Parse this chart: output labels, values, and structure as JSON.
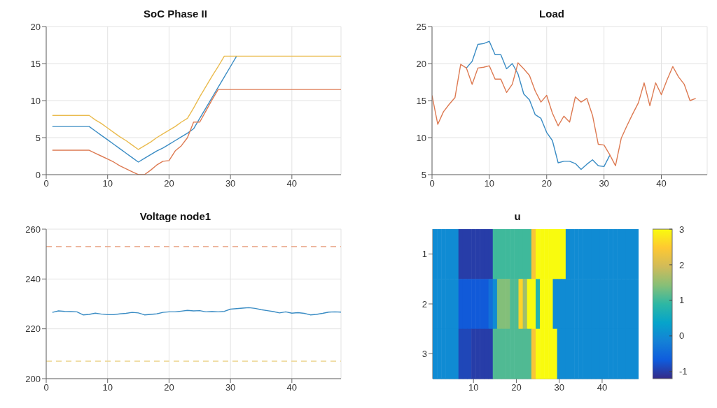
{
  "chart_data": [
    {
      "type": "line",
      "title": "SoC Phase II",
      "x": [
        1,
        2,
        3,
        4,
        5,
        6,
        7,
        8,
        9,
        10,
        11,
        12,
        13,
        14,
        15,
        16,
        17,
        18,
        19,
        20,
        21,
        22,
        23,
        24,
        25,
        26,
        27,
        28,
        29,
        30,
        31,
        32,
        33,
        34,
        35,
        36,
        37,
        38,
        39,
        40,
        41,
        42,
        43,
        44,
        45,
        46,
        47,
        48
      ],
      "xlim": [
        0,
        48
      ],
      "xticks": [
        0,
        10,
        20,
        30,
        40
      ],
      "ylim": [
        0,
        20
      ],
      "yticks": [
        0,
        5,
        10,
        15,
        20
      ],
      "grid": true,
      "series": [
        {
          "color": "#3a8cc4",
          "values": [
            6.5,
            6.5,
            6.5,
            6.5,
            6.5,
            6.5,
            6.5,
            5.9,
            5.3,
            4.7,
            4.1,
            3.5,
            2.9,
            2.3,
            1.7,
            2.2,
            2.7,
            3.2,
            3.6,
            4.1,
            4.6,
            5.1,
            5.6,
            6.2,
            7.6,
            9.0,
            10.4,
            11.8,
            13.2,
            14.6,
            16.0,
            null,
            null,
            null,
            null,
            null,
            null,
            null,
            null,
            null,
            null,
            null,
            null,
            null,
            null,
            null,
            null,
            null
          ]
        },
        {
          "color": "#dd7a52",
          "values": [
            3.3,
            3.3,
            3.3,
            3.3,
            3.3,
            3.3,
            3.3,
            2.9,
            2.5,
            2.1,
            1.7,
            1.2,
            0.8,
            0.4,
            0,
            0,
            0.6,
            1.3,
            1.8,
            1.9,
            3.2,
            3.9,
            5.0,
            7.1,
            7.1,
            8.6,
            10.1,
            11.5,
            11.5,
            11.5,
            11.5,
            11.5,
            11.5,
            11.5,
            11.5,
            11.5,
            11.5,
            11.5,
            11.5,
            11.5,
            11.5,
            11.5,
            11.5,
            11.5,
            11.5,
            11.5,
            11.5,
            11.5
          ]
        },
        {
          "color": "#eabb4e",
          "values": [
            8.0,
            8.0,
            8.0,
            8.0,
            8.0,
            8.0,
            8.0,
            7.4,
            6.9,
            6.3,
            5.7,
            5.1,
            4.6,
            4.0,
            3.4,
            3.9,
            4.4,
            5.0,
            5.5,
            6.0,
            6.5,
            7.1,
            7.6,
            9.0,
            10.5,
            11.9,
            13.3,
            14.6,
            16.0,
            16,
            16,
            16,
            16,
            16,
            16,
            16,
            16,
            16,
            16,
            16,
            16,
            16,
            16,
            16,
            16,
            16,
            16,
            16
          ]
        }
      ]
    },
    {
      "type": "line",
      "title": "Load",
      "x": [
        0,
        1,
        2,
        3,
        4,
        5,
        6,
        7,
        8,
        9,
        10,
        11,
        12,
        13,
        14,
        15,
        16,
        17,
        18,
        19,
        20,
        21,
        22,
        23,
        24,
        25,
        26,
        27,
        28,
        29,
        30,
        31,
        32,
        33,
        34,
        35,
        36,
        37,
        38,
        39,
        40,
        41,
        42,
        43,
        44,
        45,
        46
      ],
      "xlim": [
        0,
        48
      ],
      "xticks": [
        0,
        10,
        20,
        30,
        40
      ],
      "ylim": [
        5,
        25
      ],
      "yticks": [
        5,
        10,
        15,
        20,
        25
      ],
      "grid": true,
      "series": [
        {
          "color": "#3a8cc4",
          "values": [
            null,
            null,
            null,
            null,
            null,
            null,
            19.4,
            20.3,
            22.6,
            22.7,
            23.0,
            21.2,
            21.2,
            19.3,
            20.0,
            18.6,
            15.9,
            15.1,
            13.1,
            12.6,
            10.7,
            9.6,
            6.6,
            6.8,
            6.8,
            6.5,
            5.7,
            6.4,
            7.0,
            6.2,
            6.1,
            7.6,
            null,
            null,
            null,
            null,
            null,
            null,
            null,
            null,
            null,
            null,
            null,
            null,
            null,
            null,
            null
          ]
        },
        {
          "color": "#dd7a52",
          "values": [
            15.7,
            11.8,
            13.5,
            14.5,
            15.4,
            19.9,
            19.4,
            17.2,
            19.4,
            19.5,
            19.7,
            17.9,
            17.9,
            16.1,
            17.2,
            20.1,
            19.3,
            18.4,
            16.3,
            14.8,
            15.7,
            13.3,
            11.6,
            12.9,
            12.1,
            15.5,
            14.8,
            15.3,
            13.0,
            9.1,
            9.0,
            7.7,
            6.2,
            9.9,
            11.6,
            13.2,
            14.7,
            17.4,
            14.3,
            17.4,
            15.8,
            17.8,
            19.6,
            18.2,
            17.2,
            15.0,
            15.3
          ]
        }
      ]
    },
    {
      "type": "line",
      "title": "Voltage node1",
      "x": [
        1,
        2,
        3,
        4,
        5,
        6,
        7,
        8,
        9,
        10,
        11,
        12,
        13,
        14,
        15,
        16,
        17,
        18,
        19,
        20,
        21,
        22,
        23,
        24,
        25,
        26,
        27,
        28,
        29,
        30,
        31,
        32,
        33,
        34,
        35,
        36,
        37,
        38,
        39,
        40,
        41,
        42,
        43,
        44,
        45,
        46,
        47,
        48
      ],
      "xlim": [
        0,
        48
      ],
      "xticks": [
        0,
        10,
        20,
        30,
        40
      ],
      "ylim": [
        200,
        260
      ],
      "yticks": [
        200,
        220,
        240,
        260
      ],
      "grid": true,
      "series": [
        {
          "color": "#3a8cc4",
          "values": [
            226.6,
            227.2,
            227.0,
            226.9,
            226.8,
            225.6,
            225.8,
            226.3,
            225.9,
            225.7,
            225.7,
            226.0,
            226.2,
            226.6,
            226.4,
            225.6,
            225.8,
            226.0,
            226.6,
            226.8,
            226.8,
            227.1,
            227.4,
            227.2,
            227.3,
            226.8,
            226.9,
            226.8,
            227.0,
            227.9,
            228.1,
            228.3,
            228.5,
            228.2,
            227.7,
            227.3,
            226.9,
            226.4,
            226.8,
            226.3,
            226.5,
            226.2,
            225.6,
            225.8,
            226.2,
            226.7,
            226.8,
            226.7
          ]
        }
      ],
      "ref_lines": [
        {
          "axis": "y",
          "value": 253,
          "color": "#e8a080",
          "line_style": "dashed"
        },
        {
          "axis": "y",
          "value": 207,
          "color": "#ecd48a",
          "line_style": "dashed"
        }
      ]
    },
    {
      "type": "heatmap",
      "title": "u",
      "x": [
        1,
        2,
        3,
        4,
        5,
        6,
        7,
        8,
        9,
        10,
        11,
        12,
        13,
        14,
        15,
        16,
        17,
        18,
        19,
        20,
        21,
        22,
        23,
        24,
        25,
        26,
        27,
        28,
        29,
        30,
        31,
        32,
        33,
        34,
        35,
        36,
        37,
        38,
        39,
        40,
        41,
        42,
        43,
        44,
        45,
        46,
        47,
        48
      ],
      "xlim": [
        0.5,
        48.5
      ],
      "xticks": [
        10,
        20,
        30,
        40
      ],
      "y_categories": [
        "1",
        "2",
        "3"
      ],
      "clim": [
        -1.2,
        3
      ],
      "cticks": [
        -1,
        0,
        1,
        2,
        3
      ],
      "cells": [
        [
          0,
          0,
          0,
          0,
          0,
          0,
          -1,
          -1,
          -1,
          -1,
          -1,
          -1,
          -1,
          -1,
          1,
          1,
          1,
          1,
          1,
          1,
          1,
          1,
          1,
          2.4,
          3,
          3,
          3,
          3,
          3,
          3,
          3,
          0,
          0,
          0,
          0,
          0,
          0,
          0,
          0,
          0,
          0,
          0,
          0,
          0,
          0,
          0,
          0,
          0
        ],
        [
          0,
          0,
          0,
          0,
          0,
          0,
          -0.7,
          -0.7,
          -0.7,
          -0.7,
          -0.7,
          -0.7,
          -0.7,
          -0.4,
          0,
          1.4,
          1.4,
          1.4,
          1.1,
          1.1,
          2.6,
          1.6,
          3,
          3,
          0.8,
          3,
          3,
          3,
          0,
          0,
          0,
          0,
          0,
          0,
          0,
          0,
          0,
          0,
          0,
          0,
          0,
          0,
          0,
          0,
          0,
          0,
          0,
          0
        ],
        [
          0,
          0,
          0,
          0,
          0,
          0,
          -0.9,
          -0.9,
          -0.9,
          -1,
          -1,
          -1,
          -1,
          -1,
          1.1,
          1.1,
          1.1,
          1.1,
          1.1,
          1.1,
          1.1,
          1.1,
          1.1,
          2.4,
          3,
          3,
          3,
          3,
          3,
          0,
          0,
          0,
          0,
          0,
          0,
          0,
          0,
          0,
          0,
          0,
          0,
          0,
          0,
          0,
          0,
          0,
          0,
          0
        ]
      ]
    }
  ]
}
